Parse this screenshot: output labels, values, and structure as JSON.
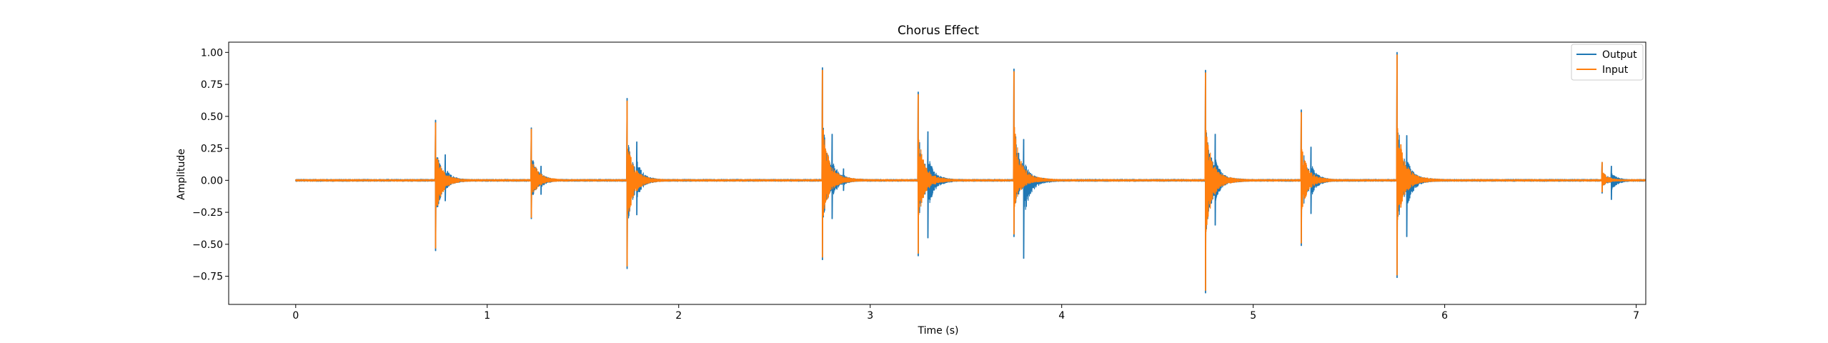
{
  "chart_data": {
    "type": "line",
    "title": "Chorus Effect",
    "xlabel": "Time (s)",
    "ylabel": "Amplitude",
    "xlim": [
      -0.35,
      7.05
    ],
    "ylim": [
      -0.97,
      1.08
    ],
    "x_ticks": [
      0,
      1,
      2,
      3,
      4,
      5,
      6,
      7
    ],
    "x_tick_labels": [
      "0",
      "1",
      "2",
      "3",
      "4",
      "5",
      "6",
      "7"
    ],
    "y_ticks": [
      -0.75,
      -0.5,
      -0.25,
      0.0,
      0.25,
      0.5,
      0.75,
      1.0
    ],
    "y_tick_labels": [
      "−0.75",
      "−0.50",
      "−0.25",
      "0.00",
      "0.25",
      "0.50",
      "0.75",
      "1.00"
    ],
    "grid": false,
    "legend_position": "top-right",
    "duration": 7.05,
    "colors": {
      "output": "#1f77b4",
      "input": "#ff7f0e"
    },
    "series": [
      {
        "name": "Output",
        "color": "#1f77b4",
        "events": [
          {
            "t": 0.73,
            "max": 0.47,
            "min": -0.55
          },
          {
            "t": 0.78,
            "max": 0.2,
            "min": -0.16
          },
          {
            "t": 1.23,
            "max": 0.41,
            "min": -0.3
          },
          {
            "t": 1.28,
            "max": 0.11,
            "min": -0.11
          },
          {
            "t": 1.73,
            "max": 0.64,
            "min": -0.69
          },
          {
            "t": 1.78,
            "max": 0.3,
            "min": -0.27
          },
          {
            "t": 2.75,
            "max": 0.88,
            "min": -0.62
          },
          {
            "t": 2.8,
            "max": 0.36,
            "min": -0.3
          },
          {
            "t": 2.86,
            "max": 0.09,
            "min": -0.08
          },
          {
            "t": 3.25,
            "max": 0.69,
            "min": -0.59
          },
          {
            "t": 3.3,
            "max": 0.38,
            "min": -0.45
          },
          {
            "t": 3.75,
            "max": 0.87,
            "min": -0.44
          },
          {
            "t": 3.8,
            "max": 0.32,
            "min": -0.61
          },
          {
            "t": 4.75,
            "max": 0.86,
            "min": -0.88
          },
          {
            "t": 4.8,
            "max": 0.36,
            "min": -0.35
          },
          {
            "t": 5.25,
            "max": 0.55,
            "min": -0.51
          },
          {
            "t": 5.3,
            "max": 0.26,
            "min": -0.26
          },
          {
            "t": 5.75,
            "max": 1.0,
            "min": -0.76
          },
          {
            "t": 5.8,
            "max": 0.35,
            "min": -0.44
          },
          {
            "t": 6.82,
            "max": 0.14,
            "min": -0.1
          },
          {
            "t": 6.87,
            "max": 0.11,
            "min": -0.15
          }
        ]
      },
      {
        "name": "Input",
        "color": "#ff7f0e",
        "events": [
          {
            "t": 0.73,
            "max": 0.45,
            "min": -0.53
          },
          {
            "t": 1.23,
            "max": 0.4,
            "min": -0.29
          },
          {
            "t": 1.73,
            "max": 0.62,
            "min": -0.67
          },
          {
            "t": 2.75,
            "max": 0.86,
            "min": -0.6
          },
          {
            "t": 3.25,
            "max": 0.67,
            "min": -0.57
          },
          {
            "t": 3.75,
            "max": 0.85,
            "min": -0.42
          },
          {
            "t": 4.75,
            "max": 0.84,
            "min": -0.86
          },
          {
            "t": 5.25,
            "max": 0.53,
            "min": -0.49
          },
          {
            "t": 5.75,
            "max": 0.98,
            "min": -0.74
          },
          {
            "t": 6.82,
            "max": 0.14,
            "min": -0.09
          }
        ]
      }
    ]
  }
}
